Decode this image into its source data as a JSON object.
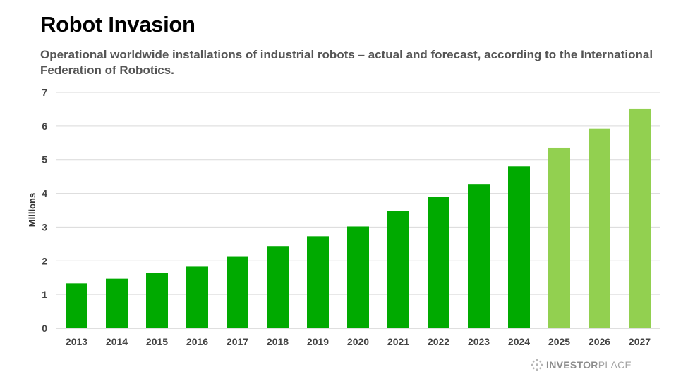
{
  "header": {
    "title": "Robot Invasion",
    "subtitle": "Operational worldwide installations of industrial robots – actual and forecast, according to the International Federation of Robotics."
  },
  "brand": {
    "icon": "investorplace-logo-icon",
    "word1": "INVESTOR",
    "word2": "PLACE"
  },
  "colors": {
    "actual": "#00aa00",
    "forecast": "#92d050",
    "grid": "#d9d9d9",
    "axis_text": "#444444"
  },
  "chart_data": {
    "type": "bar",
    "categories": [
      "2013",
      "2014",
      "2015",
      "2016",
      "2017",
      "2018",
      "2019",
      "2020",
      "2021",
      "2022",
      "2023",
      "2024",
      "2025",
      "2026",
      "2027"
    ],
    "series": [
      {
        "values": [
          1.33,
          1.47,
          1.63,
          1.83,
          2.12,
          2.44,
          2.73,
          3.02,
          3.48,
          3.9,
          4.28,
          4.8,
          5.35,
          5.92,
          6.5
        ]
      }
    ],
    "forecast_from_index": 12,
    "title": "Robot Invasion",
    "subtitle": "Operational worldwide installations of industrial robots – actual and forecast, according to the International Federation of Robotics.",
    "xlabel": "",
    "ylabel": "Millions",
    "ylim": [
      0,
      7
    ],
    "yticks": [
      "0",
      "1",
      "2",
      "3",
      "4",
      "5",
      "6",
      "7"
    ],
    "grid": true,
    "legend": "none"
  }
}
